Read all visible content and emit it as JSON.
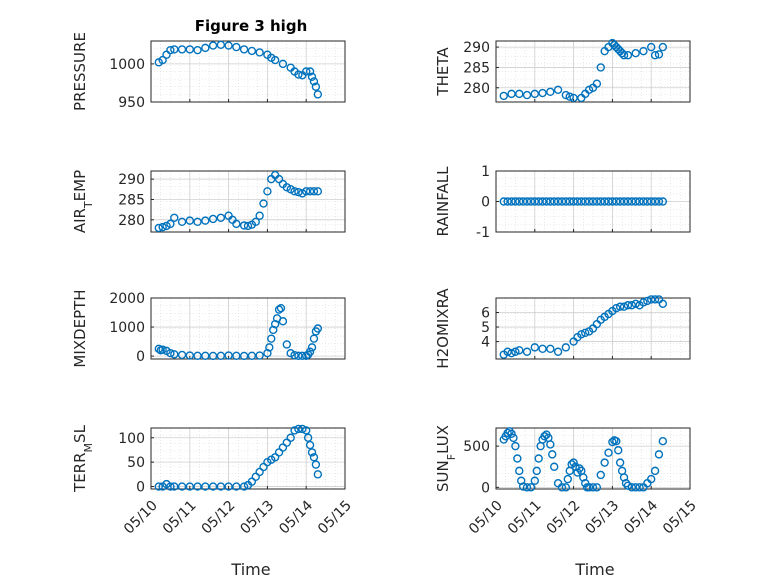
{
  "figure": {
    "title": "Figure 3 high",
    "xlabel": "Time",
    "x_tick_labels": [
      "05/10",
      "05/11",
      "05/12",
      "05/13",
      "05/14",
      "05/15"
    ],
    "x_range_days": [
      10,
      15
    ],
    "marker_color": "#0072BD",
    "marker": "open circle"
  },
  "chart_data": [
    {
      "type": "scatter",
      "id": "pressure",
      "ylabel": "PRESSURE",
      "ylabel_sub": "",
      "ylim": [
        950,
        1030
      ],
      "yticks": [
        950,
        1000
      ],
      "x": [
        10.2,
        10.3,
        10.4,
        10.5,
        10.6,
        10.8,
        11.0,
        11.2,
        11.4,
        11.6,
        11.8,
        12.0,
        12.2,
        12.4,
        12.6,
        12.8,
        13.0,
        13.1,
        13.2,
        13.4,
        13.6,
        13.7,
        13.8,
        13.9,
        14.0,
        14.1,
        14.15,
        14.2,
        14.25,
        14.3
      ],
      "y": [
        1002,
        1005,
        1012,
        1018,
        1019,
        1019,
        1019,
        1018,
        1021,
        1024,
        1025,
        1024,
        1022,
        1019,
        1017,
        1015,
        1012,
        1008,
        1005,
        1000,
        995,
        990,
        986,
        985,
        990,
        990,
        983,
        977,
        970,
        960
      ]
    },
    {
      "type": "scatter",
      "id": "theta",
      "ylabel": "THETA",
      "ylabel_sub": "",
      "ylim": [
        276.5,
        291.5
      ],
      "yticks": [
        280,
        285,
        290
      ],
      "x": [
        10.2,
        10.4,
        10.6,
        10.8,
        11.0,
        11.2,
        11.4,
        11.6,
        11.8,
        11.9,
        12.0,
        12.2,
        12.3,
        12.4,
        12.5,
        12.6,
        12.7,
        12.8,
        12.9,
        13.0,
        13.05,
        13.1,
        13.15,
        13.2,
        13.25,
        13.3,
        13.4,
        13.6,
        13.8,
        14.0,
        14.1,
        14.2,
        14.3
      ],
      "y": [
        278,
        278.5,
        278.5,
        278.2,
        278.5,
        278.7,
        279,
        279.5,
        278.2,
        277.8,
        277.5,
        277.5,
        278.5,
        279.5,
        280,
        281,
        285,
        289,
        290,
        291,
        290.5,
        290,
        289.5,
        289,
        288.5,
        288,
        288,
        288.5,
        289,
        290,
        288,
        288.2,
        290
      ]
    },
    {
      "type": "scatter",
      "id": "air_temp",
      "ylabel": "AIR",
      "ylabel_sub": "T",
      "ylabel_suffix": "EMP",
      "ylim": [
        277,
        292
      ],
      "yticks": [
        280,
        285,
        290
      ],
      "x": [
        10.2,
        10.3,
        10.4,
        10.5,
        10.6,
        10.8,
        11.0,
        11.2,
        11.4,
        11.6,
        11.8,
        12.0,
        12.1,
        12.2,
        12.4,
        12.5,
        12.6,
        12.7,
        12.8,
        12.9,
        13.0,
        13.1,
        13.2,
        13.3,
        13.4,
        13.5,
        13.6,
        13.7,
        13.8,
        13.9,
        14.0,
        14.1,
        14.2,
        14.3
      ],
      "y": [
        278,
        278.2,
        278.5,
        279,
        280.5,
        279.5,
        279.8,
        279.5,
        279.8,
        280.2,
        280.5,
        281,
        280,
        279,
        278.6,
        278.5,
        278.8,
        279.5,
        281,
        284,
        287,
        290,
        291,
        290,
        288.8,
        288,
        287.5,
        287,
        286.8,
        286.5,
        287,
        287,
        287,
        287
      ]
    },
    {
      "type": "scatter",
      "id": "rainfall",
      "ylabel": "RAINFALL",
      "ylabel_sub": "",
      "ylim": [
        -1,
        1
      ],
      "yticks": [
        -1,
        0,
        1
      ],
      "x": [
        10.2,
        10.3,
        10.4,
        10.5,
        10.6,
        10.7,
        10.8,
        10.9,
        11.0,
        11.1,
        11.2,
        11.3,
        11.4,
        11.5,
        11.6,
        11.7,
        11.8,
        11.9,
        12.0,
        12.1,
        12.2,
        12.3,
        12.4,
        12.5,
        12.6,
        12.7,
        12.8,
        12.9,
        13.0,
        13.1,
        13.2,
        13.3,
        13.4,
        13.5,
        13.6,
        13.7,
        13.8,
        13.9,
        14.0,
        14.1,
        14.2,
        14.3
      ],
      "y": [
        0,
        0,
        0,
        0,
        0,
        0,
        0,
        0,
        0,
        0,
        0,
        0,
        0,
        0,
        0,
        0,
        0,
        0,
        0,
        0,
        0,
        0,
        0,
        0,
        0,
        0,
        0,
        0,
        0,
        0,
        0,
        0,
        0,
        0,
        0,
        0,
        0,
        0,
        0,
        0,
        0,
        0
      ]
    },
    {
      "type": "scatter",
      "id": "mixdepth",
      "ylabel": "MIXDEPTH",
      "ylabel_sub": "",
      "ylim": [
        -100,
        2000
      ],
      "yticks": [
        0,
        1000,
        2000
      ],
      "x": [
        10.2,
        10.25,
        10.3,
        10.4,
        10.5,
        10.6,
        10.8,
        11.0,
        11.2,
        11.4,
        11.6,
        11.8,
        12.0,
        12.2,
        12.4,
        12.6,
        12.8,
        13.0,
        13.05,
        13.1,
        13.15,
        13.2,
        13.25,
        13.3,
        13.35,
        13.4,
        13.5,
        13.6,
        13.7,
        13.8,
        13.9,
        14.0,
        14.05,
        14.1,
        14.15,
        14.2,
        14.25,
        14.3
      ],
      "y": [
        250,
        200,
        220,
        180,
        100,
        60,
        40,
        20,
        10,
        10,
        5,
        10,
        20,
        10,
        5,
        10,
        20,
        100,
        300,
        600,
        900,
        1100,
        1300,
        1600,
        1650,
        1200,
        400,
        100,
        30,
        10,
        10,
        10,
        50,
        150,
        300,
        600,
        850,
        950
      ]
    },
    {
      "type": "scatter",
      "id": "h2omixra",
      "ylabel": "H2OMIXRA",
      "ylabel_sub": "",
      "ylim": [
        2.8,
        7
      ],
      "yticks": [
        4,
        5,
        6
      ],
      "x": [
        10.2,
        10.3,
        10.4,
        10.5,
        10.6,
        10.8,
        11.0,
        11.2,
        11.4,
        11.6,
        11.8,
        12.0,
        12.1,
        12.2,
        12.3,
        12.4,
        12.5,
        12.6,
        12.7,
        12.8,
        12.9,
        13.0,
        13.1,
        13.2,
        13.3,
        13.4,
        13.5,
        13.6,
        13.7,
        13.8,
        13.9,
        14.0,
        14.1,
        14.2,
        14.3
      ],
      "y": [
        3.1,
        3.3,
        3.2,
        3.3,
        3.4,
        3.3,
        3.6,
        3.5,
        3.5,
        3.3,
        3.6,
        4,
        4.3,
        4.5,
        4.6,
        4.7,
        4.9,
        5.2,
        5.5,
        5.7,
        5.9,
        6.1,
        6.3,
        6.4,
        6.4,
        6.5,
        6.5,
        6.6,
        6.5,
        6.7,
        6.8,
        6.9,
        6.9,
        6.9,
        6.6
      ]
    },
    {
      "type": "scatter",
      "id": "terr_msl",
      "ylabel": "TERR",
      "ylabel_sub": "M",
      "ylabel_suffix": "SL",
      "ylim": [
        -5,
        120
      ],
      "yticks": [
        0,
        50,
        100
      ],
      "x": [
        10.2,
        10.3,
        10.4,
        10.5,
        10.6,
        10.8,
        11.0,
        11.2,
        11.4,
        11.6,
        11.8,
        12.0,
        12.2,
        12.4,
        12.5,
        12.6,
        12.7,
        12.8,
        12.9,
        13.0,
        13.1,
        13.2,
        13.3,
        13.4,
        13.5,
        13.6,
        13.7,
        13.8,
        13.9,
        14.0,
        14.05,
        14.1,
        14.15,
        14.2,
        14.25,
        14.3
      ],
      "y": [
        0,
        0,
        5,
        0,
        0,
        0,
        0,
        0,
        0,
        0,
        0,
        0,
        0,
        0,
        3,
        10,
        20,
        30,
        40,
        50,
        55,
        60,
        70,
        80,
        90,
        100,
        115,
        118,
        118,
        115,
        100,
        85,
        70,
        60,
        45,
        25
      ]
    },
    {
      "type": "scatter",
      "id": "sun_flux",
      "ylabel": "SUN",
      "ylabel_sub": "F",
      "ylabel_suffix": "LUX",
      "ylim": [
        -20,
        720
      ],
      "yticks": [
        0,
        500
      ],
      "x": [
        10.2,
        10.25,
        10.3,
        10.35,
        10.4,
        10.45,
        10.5,
        10.55,
        10.6,
        10.65,
        10.7,
        10.8,
        10.9,
        11.0,
        11.05,
        11.1,
        11.15,
        11.2,
        11.25,
        11.3,
        11.35,
        11.4,
        11.45,
        11.5,
        11.6,
        11.7,
        11.8,
        11.85,
        11.9,
        11.95,
        12.0,
        12.05,
        12.1,
        12.15,
        12.2,
        12.25,
        12.3,
        12.35,
        12.4,
        12.5,
        12.6,
        12.7,
        12.8,
        12.9,
        13.0,
        13.05,
        13.1,
        13.15,
        13.2,
        13.25,
        13.3,
        13.35,
        13.4,
        13.5,
        13.6,
        13.7,
        13.8,
        13.9,
        14.0,
        14.1,
        14.2,
        14.3
      ],
      "y": [
        580,
        620,
        660,
        680,
        650,
        600,
        500,
        350,
        200,
        80,
        10,
        0,
        0,
        80,
        200,
        350,
        500,
        580,
        620,
        640,
        600,
        520,
        400,
        250,
        50,
        0,
        0,
        100,
        200,
        280,
        300,
        250,
        180,
        230,
        200,
        120,
        50,
        0,
        0,
        0,
        0,
        150,
        300,
        420,
        550,
        570,
        560,
        450,
        300,
        200,
        120,
        50,
        20,
        0,
        0,
        0,
        0,
        50,
        100,
        200,
        400,
        560
      ]
    }
  ]
}
